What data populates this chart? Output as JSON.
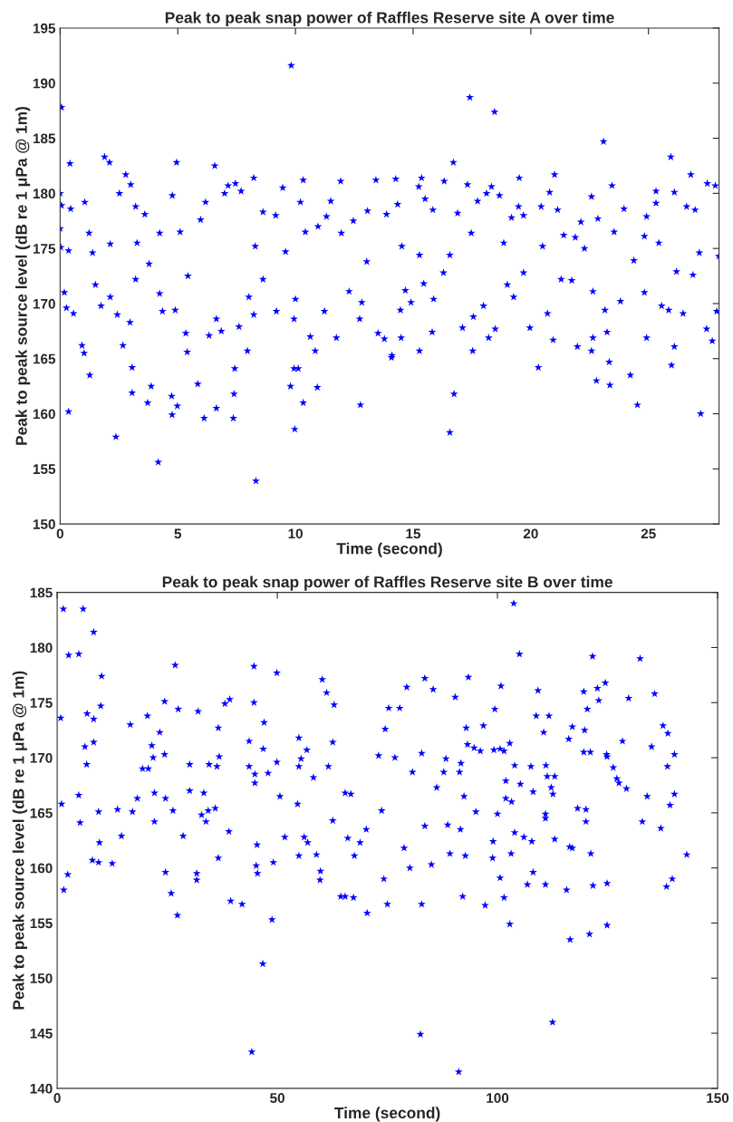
{
  "chart_data": [
    {
      "type": "scatter",
      "title": "Peak to peak snap power of Raffles Reserve site A over time",
      "xlabel": "Time (second)",
      "ylabel": "Peak to peak source level (dB re 1 μPa @ 1m)",
      "xlim": [
        0,
        28
      ],
      "xticks": [
        0,
        5,
        10,
        15,
        20,
        25
      ],
      "ylim": [
        150,
        195
      ],
      "yticks": [
        150,
        155,
        160,
        165,
        170,
        175,
        180,
        185,
        190,
        195
      ],
      "marker": "star",
      "grid": false,
      "series": [
        {
          "color": "#0000ff",
          "x": [
            0.06,
            0,
            0.06,
            0,
            0.03,
            0.36,
            0.45,
            0.42,
            0.18,
            0.27,
            0.36,
            0.57,
            0.93,
            1.02,
            1.26,
            1.05,
            1.23,
            1.38,
            1.5,
            1.74,
            1.89,
            2.1,
            2.13,
            2.13,
            2.37,
            2.43,
            2.52,
            2.67,
            2.79,
            3.0,
            2.97,
            3.06,
            3.06,
            3.21,
            3.27,
            3.21,
            3.72,
            3.87,
            3.6,
            3.78,
            4.17,
            4.23,
            4.35,
            4.23,
            4.74,
            4.76,
            4.77,
            4.95,
            4.98,
            4.89,
            5.1,
            5.34,
            5.4,
            5.43,
            5.85,
            5.97,
            6.12,
            6.18,
            6.33,
            6.57,
            6.64,
            6.64,
            6.85,
            6.99,
            7.14,
            7.45,
            7.39,
            7.42,
            7.36,
            7.6,
            7.69,
            7.96,
            8.02,
            8.23,
            8.23,
            8.32,
            8.29,
            8.62,
            8.62,
            9.19,
            9.16,
            9.46,
            9.58,
            9.82,
            9.79,
            9.94,
            9.97,
            9.94,
            10.12,
            10.0,
            10.21,
            10.33,
            10.33,
            10.42,
            10.63,
            10.84,
            10.93,
            10.96,
            11.23,
            11.32,
            11.5,
            11.74,
            11.92,
            11.95,
            12.28,
            12.46,
            12.76,
            12.73,
            12.82,
            13.03,
            13.06,
            13.42,
            13.51,
            13.78,
            14.08,
            13.87,
            14.26,
            14.34,
            14.52,
            14.46,
            14.49,
            14.1,
            14.67,
            14.91,
            15.24,
            15.36,
            15.27,
            15.27,
            15.51,
            15.45,
            15.84,
            15.81,
            15.87,
            16.32,
            16.29,
            16.56,
            16.56,
            16.71,
            16.74,
            16.89,
            17.1,
            17.31,
            17.41,
            17.47,
            17.53,
            17.56,
            17.74,
            17.99,
            18.12,
            18.21,
            18.33,
            18.46,
            18.49,
            18.67,
            18.85,
            19.0,
            19.18,
            19.27,
            19.51,
            19.48,
            19.69,
            19.69,
            19.96,
            20.32,
            20.44,
            20.5,
            20.71,
            20.8,
            20.95,
            21.01,
            21.14,
            21.4,
            21.29,
            21.74,
            21.89,
            21.98,
            22.13,
            22.28,
            22.58,
            22.64,
            22.58,
            22.64,
            22.79,
            22.85,
            23.09,
            23.15,
            23.24,
            23.33,
            23.36,
            23.45,
            23.54,
            23.81,
            23.96,
            24.23,
            24.38,
            24.53,
            24.83,
            24.83,
            24.92,
            24.92,
            25.32,
            25.32,
            25.44,
            25.56,
            25.86,
            25.95,
            25.98,
            26.1,
            26.1,
            26.19,
            26.47,
            26.62,
            26.8,
            26.89,
            26.98,
            27.22,
            27.16,
            27.47,
            27.5,
            27.71,
            27.84,
            27.9,
            27.99
          ],
          "values": [
            187.8,
            180.0,
            178.9,
            176.8,
            175.1,
            174.8,
            178.6,
            182.7,
            171.0,
            169.6,
            160.2,
            169.1,
            166.2,
            165.5,
            163.5,
            179.2,
            176.4,
            174.6,
            171.7,
            169.8,
            183.3,
            182.8,
            175.4,
            170.6,
            157.9,
            169.0,
            180.0,
            166.2,
            181.7,
            180.8,
            168.3,
            164.2,
            161.9,
            178.8,
            175.5,
            172.2,
            161.0,
            162.5,
            178.1,
            173.6,
            155.6,
            170.9,
            169.3,
            176.4,
            161.6,
            159.9,
            179.8,
            182.8,
            160.7,
            169.4,
            176.5,
            167.3,
            165.6,
            172.5,
            162.7,
            177.6,
            159.6,
            179.2,
            167.1,
            182.5,
            160.5,
            168.6,
            167.5,
            180.0,
            180.7,
            180.9,
            161.8,
            164.1,
            159.6,
            167.9,
            180.2,
            165.7,
            170.6,
            181.4,
            169.0,
            153.9,
            175.2,
            178.3,
            172.2,
            169.3,
            178.0,
            180.5,
            174.7,
            191.6,
            162.5,
            168.6,
            158.6,
            164.1,
            164.1,
            170.4,
            179.2,
            181.2,
            161.0,
            176.5,
            167.0,
            165.7,
            162.4,
            177.0,
            169.3,
            177.9,
            179.3,
            166.9,
            181.1,
            176.4,
            171.1,
            177.5,
            160.8,
            168.6,
            170.1,
            173.8,
            178.4,
            181.2,
            167.3,
            166.8,
            165.1,
            178.1,
            181.3,
            179.0,
            175.2,
            169.4,
            166.9,
            165.3,
            171.2,
            170.1,
            180.6,
            181.4,
            174.4,
            165.7,
            179.5,
            171.8,
            178.5,
            167.4,
            170.4,
            181.1,
            172.8,
            174.4,
            158.3,
            182.8,
            161.8,
            178.2,
            167.8,
            180.8,
            188.7,
            176.4,
            165.7,
            168.8,
            179.3,
            169.8,
            180.0,
            166.9,
            180.6,
            187.4,
            167.7,
            179.8,
            175.5,
            171.7,
            177.8,
            170.6,
            181.4,
            178.8,
            178.0,
            172.8,
            167.8,
            164.2,
            178.8,
            175.2,
            169.1,
            180.1,
            166.7,
            181.7,
            178.5,
            176.2,
            172.2,
            172.1,
            176.0,
            166.1,
            177.4,
            175.0,
            179.7,
            166.9,
            165.7,
            171.1,
            163.0,
            177.7,
            184.7,
            169.4,
            167.4,
            164.7,
            162.6,
            180.7,
            176.5,
            170.2,
            178.6,
            163.5,
            173.9,
            160.8,
            176.1,
            171.0,
            166.9,
            177.9,
            180.2,
            179.1,
            175.5,
            169.8,
            169.4,
            183.3,
            164.4,
            166.1,
            180.1,
            172.9,
            169.1,
            178.8,
            181.7,
            172.6,
            178.5,
            160.0,
            174.6,
            167.7,
            180.9,
            166.6,
            180.7,
            169.3,
            174.3
          ]
        }
      ]
    },
    {
      "type": "scatter",
      "title": "Peak to peak snap power of Raffles Reserve site B over time",
      "xlabel": "Time (second)",
      "ylabel": "Peak to peak source level (dB re 1 μPa @ 1m)",
      "xlim": [
        0,
        150
      ],
      "xticks": [
        0,
        50,
        100,
        150
      ],
      "ylim": [
        140,
        185
      ],
      "yticks": [
        140,
        145,
        150,
        155,
        160,
        165,
        170,
        175,
        180,
        185
      ],
      "marker": "star",
      "grid": false,
      "series": [
        {
          "color": "#0000ff",
          "x": [
            1.4,
            5.9,
            8.3,
            2.6,
            4.9,
            10.1,
            0.8,
            6.8,
            8.3,
            9.9,
            6.3,
            8.3,
            6.7,
            4.9,
            1.0,
            5.2,
            9.4,
            9.6,
            8.0,
            9.4,
            2.4,
            1.5,
            12.5,
            13.7,
            14.6,
            16.6,
            17.1,
            18.2,
            19.4,
            20.7,
            20.5,
            21.5,
            21.8,
            22.1,
            22.1,
            23.3,
            24.4,
            24.4,
            24.6,
            24.6,
            25.9,
            26.8,
            26.3,
            27.3,
            27.5,
            28.6,
            30.1,
            30.1,
            31.7,
            31.7,
            32.0,
            33.3,
            32.8,
            33.8,
            34.3,
            34.5,
            35.9,
            36.3,
            36.6,
            36.8,
            36.6,
            38.1,
            39.2,
            39.0,
            39.4,
            42.0,
            43.6,
            43.6,
            44.2,
            44.7,
            44.7,
            44.9,
            44.9,
            45.4,
            45.2,
            45.5,
            46.7,
            46.8,
            47.0,
            47.9,
            48.8,
            49.1,
            49.9,
            49.9,
            50.6,
            51.7,
            54.6,
            54.9,
            54.9,
            55.4,
            56.7,
            56.1,
            56.9,
            54.9,
            58.2,
            58.9,
            59.7,
            59.8,
            60.2,
            61.2,
            61.6,
            62.6,
            62.9,
            62.6,
            64.4,
            65.4,
            65.4,
            66.7,
            66.0,
            67.3,
            67.5,
            68.8,
            70.2,
            70.4,
            73.0,
            73.7,
            74.2,
            74.5,
            75.0,
            75.3,
            76.7,
            78.8,
            80.1,
            79.4,
            77.8,
            80.7,
            82.8,
            82.5,
            83.5,
            82.8,
            83.5,
            85.0,
            85.4,
            86.2,
            87.8,
            88.3,
            88.7,
            89.2,
            90.4,
            91.4,
            91.7,
            91.6,
            91.2,
            92.1,
            92.7,
            92.4,
            92.9,
            93.4,
            93.2,
            94.7,
            95.1,
            96.1,
            96.8,
            97.2,
            98.9,
            99.0,
            99.4,
            99.2,
            100.0,
            100.6,
            100.8,
            100.6,
            101.5,
            101.5,
            101.9,
            101.9,
            102.8,
            102.8,
            103.1,
            103.2,
            103.7,
            103.9,
            103.9,
            105.0,
            105.2,
            106.0,
            106.8,
            107.6,
            107.8,
            108.1,
            108.1,
            108.8,
            109.2,
            110.5,
            110.9,
            110.9,
            111.0,
            110.9,
            111.3,
            111.7,
            112.2,
            112.5,
            112.6,
            113.0,
            113.0,
            115.7,
            116.2,
            116.5,
            116.4,
            117.0,
            117.0,
            118.2,
            119.6,
            119.6,
            119.8,
            120.1,
            120.1,
            120.4,
            120.9,
            121.1,
            121.2,
            121.6,
            121.7,
            122.7,
            123.0,
            124.5,
            124.8,
            124.9,
            124.9,
            124.9,
            126.3,
            127.1,
            127.6,
            128.4,
            129.3,
            129.8,
            132.4,
            132.9,
            134.0,
            135.0,
            135.7,
            137.1,
            137.6,
            138.4,
            138.6,
            138.7,
            139.2,
            139.7,
            140.2,
            140.2,
            143.0
          ],
          "values": [
            183.5,
            183.5,
            181.4,
            179.3,
            179.4,
            177.4,
            173.6,
            174.0,
            173.5,
            174.7,
            171.0,
            171.4,
            169.4,
            166.6,
            165.8,
            164.1,
            165.1,
            162.3,
            160.7,
            160.5,
            159.4,
            158.0,
            160.4,
            165.3,
            162.9,
            173.0,
            165.1,
            166.3,
            169.0,
            169.0,
            173.8,
            171.1,
            170.0,
            166.8,
            164.2,
            172.3,
            175.1,
            170.3,
            166.3,
            159.6,
            157.7,
            178.4,
            165.2,
            155.7,
            174.4,
            162.9,
            169.4,
            167.0,
            159.5,
            158.9,
            174.2,
            166.8,
            164.8,
            164.2,
            165.2,
            169.4,
            165.4,
            169.2,
            172.7,
            170.1,
            160.9,
            174.9,
            175.3,
            163.3,
            157.0,
            156.7,
            171.5,
            169.2,
            143.3,
            178.3,
            175.0,
            168.5,
            167.7,
            162.1,
            160.2,
            159.5,
            151.3,
            170.8,
            173.2,
            168.6,
            155.3,
            160.5,
            177.7,
            169.6,
            166.5,
            162.8,
            165.8,
            171.8,
            169.2,
            169.9,
            170.7,
            162.8,
            162.3,
            161.1,
            168.2,
            161.2,
            158.9,
            159.7,
            177.1,
            175.9,
            169.2,
            171.4,
            174.8,
            164.3,
            157.4,
            157.4,
            166.8,
            166.7,
            162.7,
            157.3,
            161.1,
            162.3,
            163.5,
            155.9,
            170.2,
            165.2,
            159.0,
            172.6,
            156.7,
            174.5,
            170.0,
            161.8,
            160.0,
            176.4,
            174.5,
            168.7,
            156.7,
            144.9,
            177.2,
            170.4,
            163.8,
            160.3,
            176.2,
            167.3,
            168.7,
            169.9,
            163.9,
            161.3,
            175.5,
            168.7,
            169.5,
            163.5,
            141.5,
            157.4,
            161.1,
            166.5,
            172.7,
            177.3,
            171.2,
            170.9,
            165.1,
            170.6,
            172.9,
            156.6,
            160.9,
            162.4,
            174.4,
            170.7,
            164.9,
            170.8,
            176.5,
            159.1,
            170.6,
            157.3,
            167.9,
            166.3,
            171.3,
            154.9,
            161.3,
            166.0,
            184.0,
            169.3,
            163.2,
            179.4,
            167.6,
            162.8,
            158.5,
            169.2,
            162.4,
            166.9,
            159.6,
            173.8,
            176.1,
            172.3,
            164.9,
            164.5,
            169.3,
            158.5,
            168.3,
            173.8,
            167.3,
            146.0,
            166.7,
            168.3,
            162.6,
            158.0,
            171.7,
            153.5,
            161.9,
            161.8,
            172.8,
            165.4,
            176.0,
            170.5,
            172.5,
            165.3,
            164.2,
            174.4,
            154.0,
            170.5,
            161.3,
            179.2,
            158.4,
            176.3,
            175.2,
            176.8,
            170.3,
            170.1,
            158.6,
            154.8,
            169.1,
            168.1,
            167.7,
            171.5,
            167.2,
            175.4,
            179.0,
            164.2,
            166.5,
            171.0,
            175.8,
            163.6,
            172.9,
            158.3,
            169.2,
            172.2,
            165.7,
            159.0,
            170.3,
            166.7,
            161.2
          ]
        }
      ]
    }
  ]
}
